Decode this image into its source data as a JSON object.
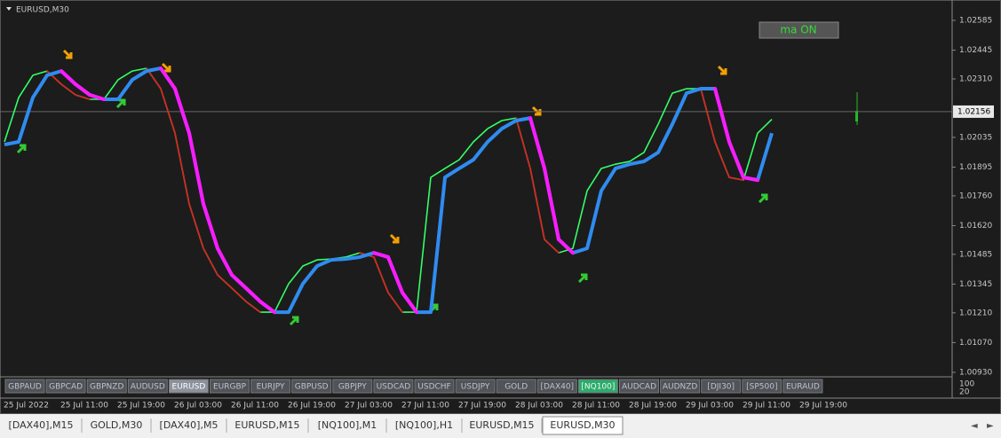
{
  "header": {
    "title": "EURUSD,M30"
  },
  "toggle": {
    "label": "ma ON"
  },
  "chart_data": {
    "type": "line",
    "ylim": [
      1.00909,
      1.02656
    ],
    "yticks": [
      1.02585,
      1.02445,
      {
        "value": 1.0231,
        "label": "1.02310"
      },
      1.02035,
      1.01895,
      {
        "value": 1.0176,
        "label": "1.01760"
      },
      {
        "value": 1.0162,
        "label": "1.01620"
      },
      1.01485,
      1.01345,
      {
        "value": 1.0121,
        "label": "1.01210"
      },
      {
        "value": 1.0107,
        "label": "1.01070"
      },
      {
        "value": 1.0093,
        "label": "1.00930"
      }
    ],
    "current_price": 1.02156,
    "time_labels": [
      "25 Jul 2022",
      "25 Jul 11:00",
      "25 Jul 19:00",
      "26 Jul 03:00",
      "26 Jul 11:00",
      "26 Jul 19:00",
      "27 Jul 03:00",
      "27 Jul 11:00",
      "27 Jul 19:00",
      "28 Jul 03:00",
      "28 Jul 11:00",
      "28 Jul 19:00",
      "29 Jul 03:00",
      "29 Jul 11:00",
      "29 Jul 19:00"
    ],
    "series": [
      {
        "color": "#2f8cf0",
        "falling_color": "#ff1aff",
        "values": [
          1.02001,
          1.02014,
          1.02222,
          1.02327,
          1.02347,
          1.02285,
          1.02235,
          1.02214,
          1.02214,
          1.02306,
          1.02347,
          1.0236,
          1.02264,
          1.02055,
          1.01722,
          1.01513,
          1.01388,
          1.01326,
          1.01263,
          1.01213,
          1.01213,
          1.01347,
          1.0143,
          1.01459,
          1.01463,
          1.01472,
          1.01492,
          1.01472,
          1.01305,
          1.01213,
          1.01213,
          1.01847,
          1.01889,
          1.0193,
          1.02014,
          1.02076,
          1.02114,
          1.02126,
          1.01889,
          1.01555,
          1.01492,
          1.01513,
          1.01784,
          1.01889,
          1.01909,
          1.01922,
          1.01964,
          1.02097,
          1.02243,
          1.02264,
          1.02264,
          1.02014,
          1.01847,
          1.01834,
          1.02055
        ]
      },
      {
        "color": "#33ff66",
        "falling_color": "#e02020",
        "values": [
          1.02014,
          1.02222,
          1.02327,
          1.02347,
          1.02285,
          1.02235,
          1.02214,
          1.02214,
          1.02306,
          1.02347,
          1.0236,
          1.02264,
          1.02055,
          1.01722,
          1.01513,
          1.01388,
          1.01326,
          1.01263,
          1.01213,
          1.01213,
          1.01347,
          1.0143,
          1.01459,
          1.01463,
          1.01472,
          1.01492,
          1.01472,
          1.01305,
          1.01213,
          1.01213,
          1.01847,
          1.01889,
          1.0193,
          1.02014,
          1.02076,
          1.02114,
          1.02126,
          1.01889,
          1.01555,
          1.01492,
          1.01513,
          1.01784,
          1.01889,
          1.01909,
          1.01922,
          1.01964,
          1.02097,
          1.02243,
          1.02264,
          1.02264,
          1.02014,
          1.01847,
          1.01834,
          1.02055,
          1.0212
        ]
      }
    ],
    "sub_axis": [
      "100",
      "20"
    ]
  },
  "symbols": [
    "GBPAUD",
    "GBPCAD",
    "GBPNZD",
    "AUDUSD",
    "EURUSD",
    "EURGBP",
    "EURJPY",
    "GBPUSD",
    "GBPJPY",
    "USDCAD",
    "USDCHF",
    "USDJPY",
    "GOLD",
    "[DAX40]",
    "[NQ100]",
    "AUDCAD",
    "AUDNZD",
    "[DJI30]",
    "[SP500]",
    "EURAUD"
  ],
  "tabs": [
    "[DAX40],M15",
    "GOLD,M30",
    "[DAX40],M5",
    "EURUSD,M15",
    "[NQ100],M1",
    "[NQ100],H1",
    "EURUSD,M15",
    "EURUSD,M30"
  ]
}
